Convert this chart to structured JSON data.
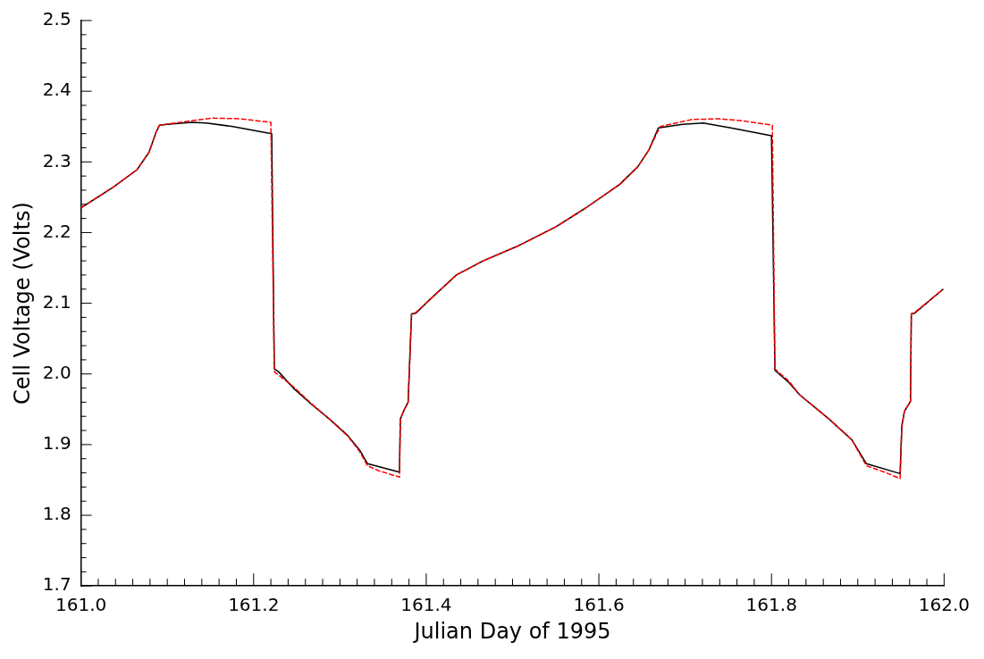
{
  "chart_data": {
    "type": "line",
    "xlabel": "Julian Day of 1995",
    "ylabel": "Cell Voltage (Volts)",
    "xlim": [
      161.0,
      162.0
    ],
    "ylim": [
      1.7,
      2.5
    ],
    "xticks": [
      {
        "value": 161.0,
        "label": "161.0"
      },
      {
        "value": 161.2,
        "label": "161.2"
      },
      {
        "value": 161.4,
        "label": "161.4"
      },
      {
        "value": 161.6,
        "label": "161.6"
      },
      {
        "value": 161.8,
        "label": "161.8"
      },
      {
        "value": 162.0,
        "label": "162.0"
      }
    ],
    "yticks": [
      {
        "value": 1.7,
        "label": "1.7"
      },
      {
        "value": 1.8,
        "label": "1.8"
      },
      {
        "value": 1.9,
        "label": "1.9"
      },
      {
        "value": 2.0,
        "label": "2.0"
      },
      {
        "value": 2.1,
        "label": "2.1"
      },
      {
        "value": 2.2,
        "label": "2.2"
      },
      {
        "value": 2.3,
        "label": "2.3"
      },
      {
        "value": 2.4,
        "label": "2.4"
      },
      {
        "value": 2.5,
        "label": "2.5"
      }
    ],
    "grid": false,
    "legend": false,
    "marker": "none",
    "series": [
      {
        "color": "#000000",
        "line_style": "solid",
        "x": [
          161.0,
          161.037,
          161.065,
          161.079,
          161.087,
          161.091,
          161.1,
          161.128,
          161.145,
          161.176,
          161.221,
          161.224,
          161.229,
          161.246,
          161.267,
          161.288,
          161.309,
          161.323,
          161.332,
          161.369,
          161.37,
          161.374,
          161.379,
          161.383,
          161.388,
          161.404,
          161.435,
          161.466,
          161.508,
          161.55,
          161.585,
          161.624,
          161.645,
          161.658,
          161.669,
          161.697,
          161.721,
          161.753,
          161.8,
          161.804,
          161.82,
          161.833,
          161.865,
          161.893,
          161.91,
          161.949,
          161.951,
          161.954,
          161.961,
          161.962,
          161.966,
          161.999
        ],
        "values": [
          2.235,
          2.264,
          2.289,
          2.314,
          2.342,
          2.352,
          2.353,
          2.356,
          2.355,
          2.35,
          2.34,
          2.007,
          2.003,
          1.98,
          1.957,
          1.936,
          1.913,
          1.892,
          1.873,
          1.861,
          1.936,
          1.948,
          1.96,
          2.085,
          2.086,
          2.105,
          2.14,
          2.16,
          2.182,
          2.208,
          2.235,
          2.268,
          2.293,
          2.317,
          2.348,
          2.353,
          2.355,
          2.348,
          2.337,
          2.005,
          1.988,
          1.97,
          1.938,
          1.907,
          1.873,
          1.859,
          1.926,
          1.947,
          1.961,
          2.085,
          2.086,
          2.12
        ]
      },
      {
        "color": "#ff0000",
        "line_style": "dashed",
        "x": [
          161.0,
          161.037,
          161.065,
          161.079,
          161.087,
          161.091,
          161.121,
          161.152,
          161.184,
          161.22,
          161.224,
          161.246,
          161.267,
          161.288,
          161.309,
          161.323,
          161.332,
          161.345,
          161.361,
          161.369,
          161.37,
          161.374,
          161.379,
          161.383,
          161.388,
          161.404,
          161.435,
          161.466,
          161.508,
          161.55,
          161.585,
          161.624,
          161.645,
          161.658,
          161.671,
          161.708,
          161.739,
          161.767,
          161.801,
          161.804,
          161.82,
          161.833,
          161.865,
          161.893,
          161.91,
          161.931,
          161.949,
          161.951,
          161.954,
          161.961,
          161.962,
          161.966,
          161.999
        ],
        "values": [
          2.235,
          2.264,
          2.289,
          2.314,
          2.342,
          2.352,
          2.357,
          2.362,
          2.361,
          2.356,
          2.003,
          1.982,
          1.958,
          1.936,
          1.912,
          1.89,
          1.87,
          1.863,
          1.857,
          1.854,
          1.936,
          1.948,
          1.96,
          2.085,
          2.087,
          2.105,
          2.14,
          2.16,
          2.182,
          2.208,
          2.235,
          2.268,
          2.293,
          2.317,
          2.35,
          2.36,
          2.361,
          2.358,
          2.352,
          2.007,
          1.99,
          1.97,
          1.938,
          1.907,
          1.87,
          1.861,
          1.852,
          1.926,
          1.947,
          1.961,
          2.085,
          2.087,
          2.12
        ]
      }
    ]
  }
}
